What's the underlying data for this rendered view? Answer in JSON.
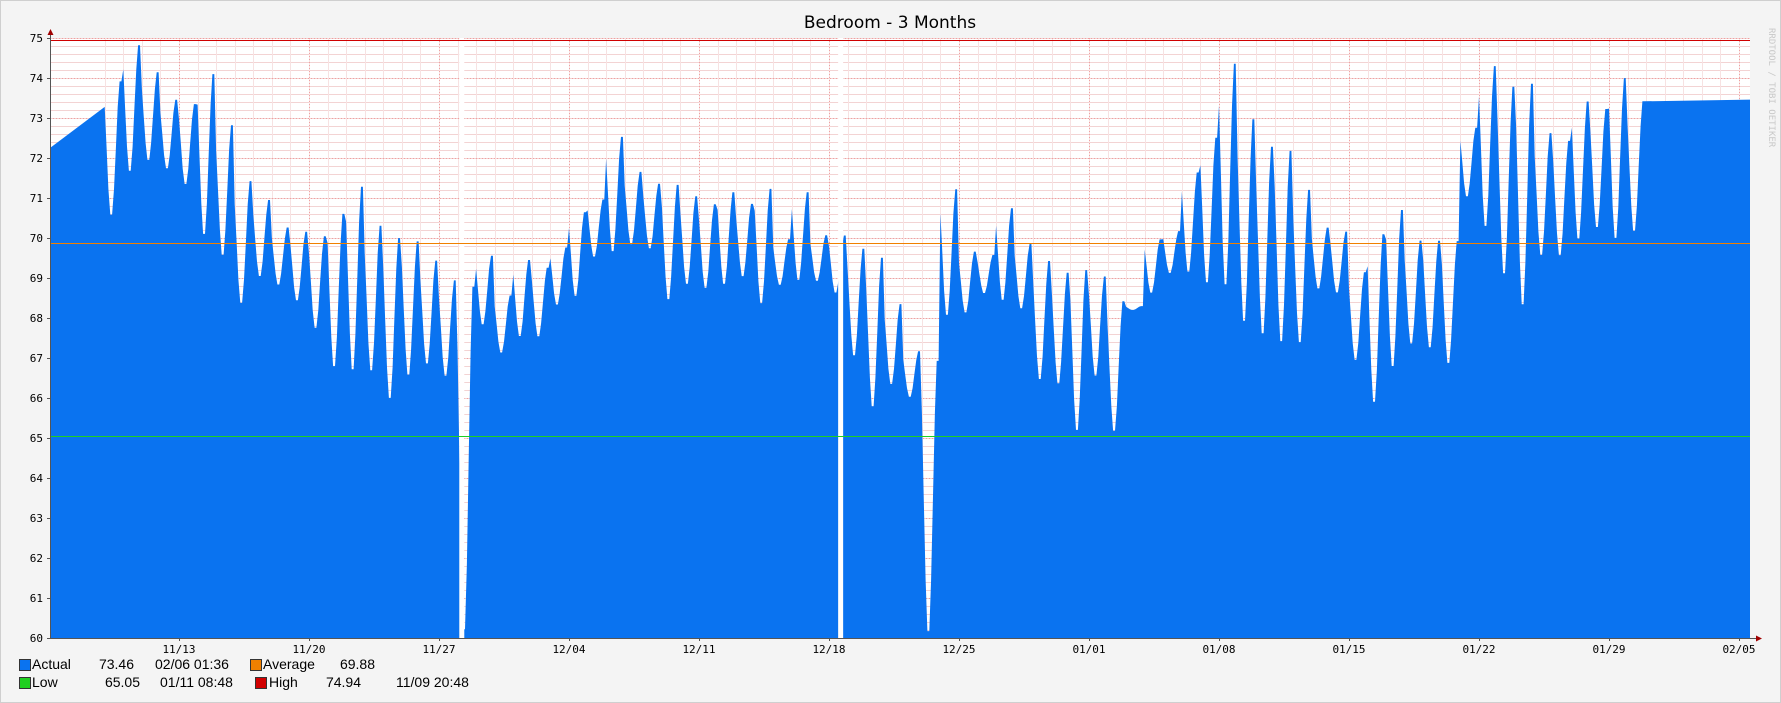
{
  "chart_data": {
    "type": "area",
    "title": "Bedroom - 3 Months",
    "xlabel": "",
    "ylabel": "",
    "ylim": [
      60,
      75
    ],
    "yticks": [
      60,
      61,
      62,
      63,
      64,
      65,
      66,
      67,
      68,
      69,
      70,
      71,
      72,
      73,
      74,
      75
    ],
    "xtick_labels": [
      "11/13",
      "11/20",
      "11/27",
      "12/04",
      "12/11",
      "12/18",
      "12/25",
      "01/01",
      "01/08",
      "01/15",
      "01/22",
      "01/29",
      "02/05"
    ],
    "xtick_day_index": [
      4,
      11,
      18,
      25,
      32,
      39,
      46,
      53,
      60,
      67,
      74,
      81,
      88
    ],
    "xlim_days": [
      0,
      92
    ],
    "grid": true,
    "legend_position": "bottom-left",
    "watermark": "RRDTOOL / TOBI OETIKER",
    "series": [
      {
        "name": "Actual",
        "color": "#0a73f0",
        "daily_max": [
          74.0,
          74.9,
          74.2,
          73.5,
          73.4,
          74.2,
          72.9,
          71.5,
          71.0,
          70.3,
          70.2,
          70.1,
          70.7,
          71.4,
          70.4,
          70.1,
          70.0,
          69.5,
          69.0,
          69.0,
          69.6,
          68.6,
          69.5,
          69.3,
          69.8,
          70.7,
          71.0,
          72.6,
          71.7,
          71.4,
          71.4,
          71.1,
          70.9,
          71.2,
          70.9,
          71.3,
          70.0,
          71.2,
          70.1,
          70.1,
          69.8,
          69.6,
          68.4,
          67.2,
          67.1,
          71.3,
          69.7,
          69.6,
          70.8,
          69.9,
          69.5,
          69.2,
          69.3,
          69.1,
          68.5,
          68.3,
          70.0,
          70.2,
          71.7,
          72.6,
          74.5,
          73.1,
          72.4,
          72.3,
          71.3,
          70.3,
          70.2,
          69.2,
          70.2,
          70.8,
          70.0,
          70.0,
          70.0,
          72.8,
          74.4,
          73.9,
          74.0,
          72.7,
          72.5,
          73.5,
          73.3,
          74.1,
          73.5
        ],
        "daily_min": [
          70.5,
          71.6,
          71.9,
          71.7,
          71.3,
          70.0,
          69.5,
          68.3,
          69.0,
          68.8,
          68.4,
          67.7,
          66.7,
          66.6,
          66.6,
          65.9,
          66.5,
          66.8,
          66.5,
          60.0,
          67.8,
          67.1,
          67.5,
          67.5,
          68.3,
          68.5,
          69.5,
          69.6,
          69.8,
          69.7,
          68.4,
          68.8,
          68.7,
          68.8,
          69.0,
          68.3,
          68.8,
          68.9,
          68.9,
          68.6,
          67.0,
          65.7,
          66.3,
          66.0,
          60.0,
          68.0,
          68.1,
          68.6,
          68.4,
          68.2,
          66.4,
          66.3,
          65.1,
          66.5,
          65.1,
          68.2,
          68.6,
          69.1,
          69.1,
          68.8,
          68.7,
          67.8,
          67.5,
          67.3,
          67.3,
          68.7,
          68.6,
          66.9,
          65.8,
          66.7,
          67.3,
          67.2,
          66.8,
          71.0,
          70.2,
          69.0,
          68.2,
          69.5,
          69.5,
          69.9,
          70.2,
          69.9,
          70.1
        ]
      }
    ],
    "reference_lines": [
      {
        "name": "Average",
        "value": 69.88,
        "color": "#f08000"
      },
      {
        "name": "Low",
        "value": 65.05,
        "color": "#20d020"
      },
      {
        "name": "High",
        "value": 74.94,
        "color": "#d00000"
      }
    ],
    "gaps_day_index": [
      19.2,
      39.6
    ]
  },
  "legend": {
    "actual": {
      "label": "Actual",
      "value": "73.46",
      "time": "02/06 01:36",
      "color": "#0a73f0"
    },
    "average": {
      "label": "Average",
      "value": "69.88",
      "color": "#f08000"
    },
    "low": {
      "label": "Low",
      "value": "65.05",
      "time": "01/11 08:48",
      "color": "#20d020"
    },
    "high": {
      "label": "High",
      "value": "74.94",
      "time": "11/09 20:48",
      "color": "#d00000"
    }
  }
}
